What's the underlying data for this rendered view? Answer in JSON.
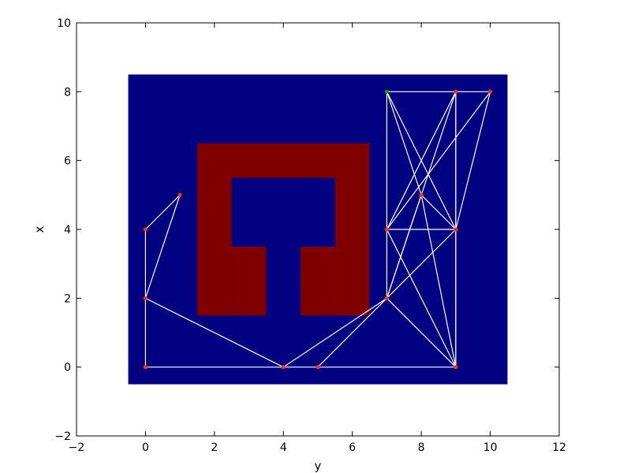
{
  "chart_data": {
    "type": "scatter",
    "xlabel": "y",
    "ylabel": "x",
    "xlim": [
      -2,
      12
    ],
    "ylim": [
      -2,
      10
    ],
    "x_ticks": [
      -2,
      0,
      2,
      4,
      6,
      8,
      10,
      12
    ],
    "y_ticks": [
      -2,
      0,
      2,
      4,
      6,
      8,
      10
    ],
    "x_tick_labels": [
      "−2",
      "0",
      "2",
      "4",
      "6",
      "8",
      "10",
      "12"
    ],
    "y_tick_labels": [
      "−2",
      "0",
      "2",
      "4",
      "6",
      "8",
      "10"
    ],
    "grid": false,
    "colors": {
      "background": "#000080",
      "obstacle": "#800000",
      "edges": "#ffffff",
      "nodes": "#ff3300",
      "start_node": "#00aa00"
    },
    "free_space": {
      "x": [
        -0.5,
        10.5
      ],
      "y": [
        -0.5,
        8.5
      ]
    },
    "obstacles": [
      {
        "x": [
          1.5,
          6.5
        ],
        "y": [
          5.5,
          6.5
        ]
      },
      {
        "x": [
          1.5,
          2.5
        ],
        "y": [
          1.5,
          5.5
        ]
      },
      {
        "x": [
          5.5,
          6.5
        ],
        "y": [
          1.5,
          5.5
        ]
      },
      {
        "x": [
          2.5,
          3.5
        ],
        "y": [
          1.5,
          3.5
        ]
      },
      {
        "x": [
          4.5,
          5.5
        ],
        "y": [
          1.5,
          3.5
        ]
      }
    ],
    "nodes": [
      {
        "id": "a",
        "x": 0,
        "y": 0
      },
      {
        "id": "b",
        "x": 0,
        "y": 2
      },
      {
        "id": "c",
        "x": 0,
        "y": 4
      },
      {
        "id": "d",
        "x": 1,
        "y": 5
      },
      {
        "id": "e",
        "x": 4,
        "y": 0
      },
      {
        "id": "f",
        "x": 5,
        "y": 0
      },
      {
        "id": "g",
        "x": 7,
        "y": 2
      },
      {
        "id": "h",
        "x": 7,
        "y": 4
      },
      {
        "id": "i",
        "x": 7,
        "y": 8,
        "start": true
      },
      {
        "id": "j",
        "x": 8,
        "y": 5
      },
      {
        "id": "k",
        "x": 9,
        "y": 0
      },
      {
        "id": "l",
        "x": 9,
        "y": 4
      },
      {
        "id": "m",
        "x": 9,
        "y": 8
      },
      {
        "id": "n",
        "x": 10,
        "y": 8
      }
    ],
    "edges": [
      [
        "a",
        "c"
      ],
      [
        "c",
        "d"
      ],
      [
        "d",
        "b"
      ],
      [
        "a",
        "k"
      ],
      [
        "b",
        "e"
      ],
      [
        "e",
        "g"
      ],
      [
        "f",
        "l"
      ],
      [
        "g",
        "k"
      ],
      [
        "g",
        "m"
      ],
      [
        "g",
        "h"
      ],
      [
        "h",
        "i"
      ],
      [
        "h",
        "l"
      ],
      [
        "h",
        "k"
      ],
      [
        "h",
        "m"
      ],
      [
        "h",
        "n"
      ],
      [
        "i",
        "m"
      ],
      [
        "m",
        "n"
      ],
      [
        "i",
        "l"
      ],
      [
        "i",
        "j"
      ],
      [
        "j",
        "l"
      ],
      [
        "l",
        "n"
      ],
      [
        "l",
        "m"
      ],
      [
        "l",
        "k"
      ],
      [
        "m",
        "k"
      ],
      [
        "j",
        "k"
      ],
      [
        "g",
        "j"
      ]
    ]
  }
}
